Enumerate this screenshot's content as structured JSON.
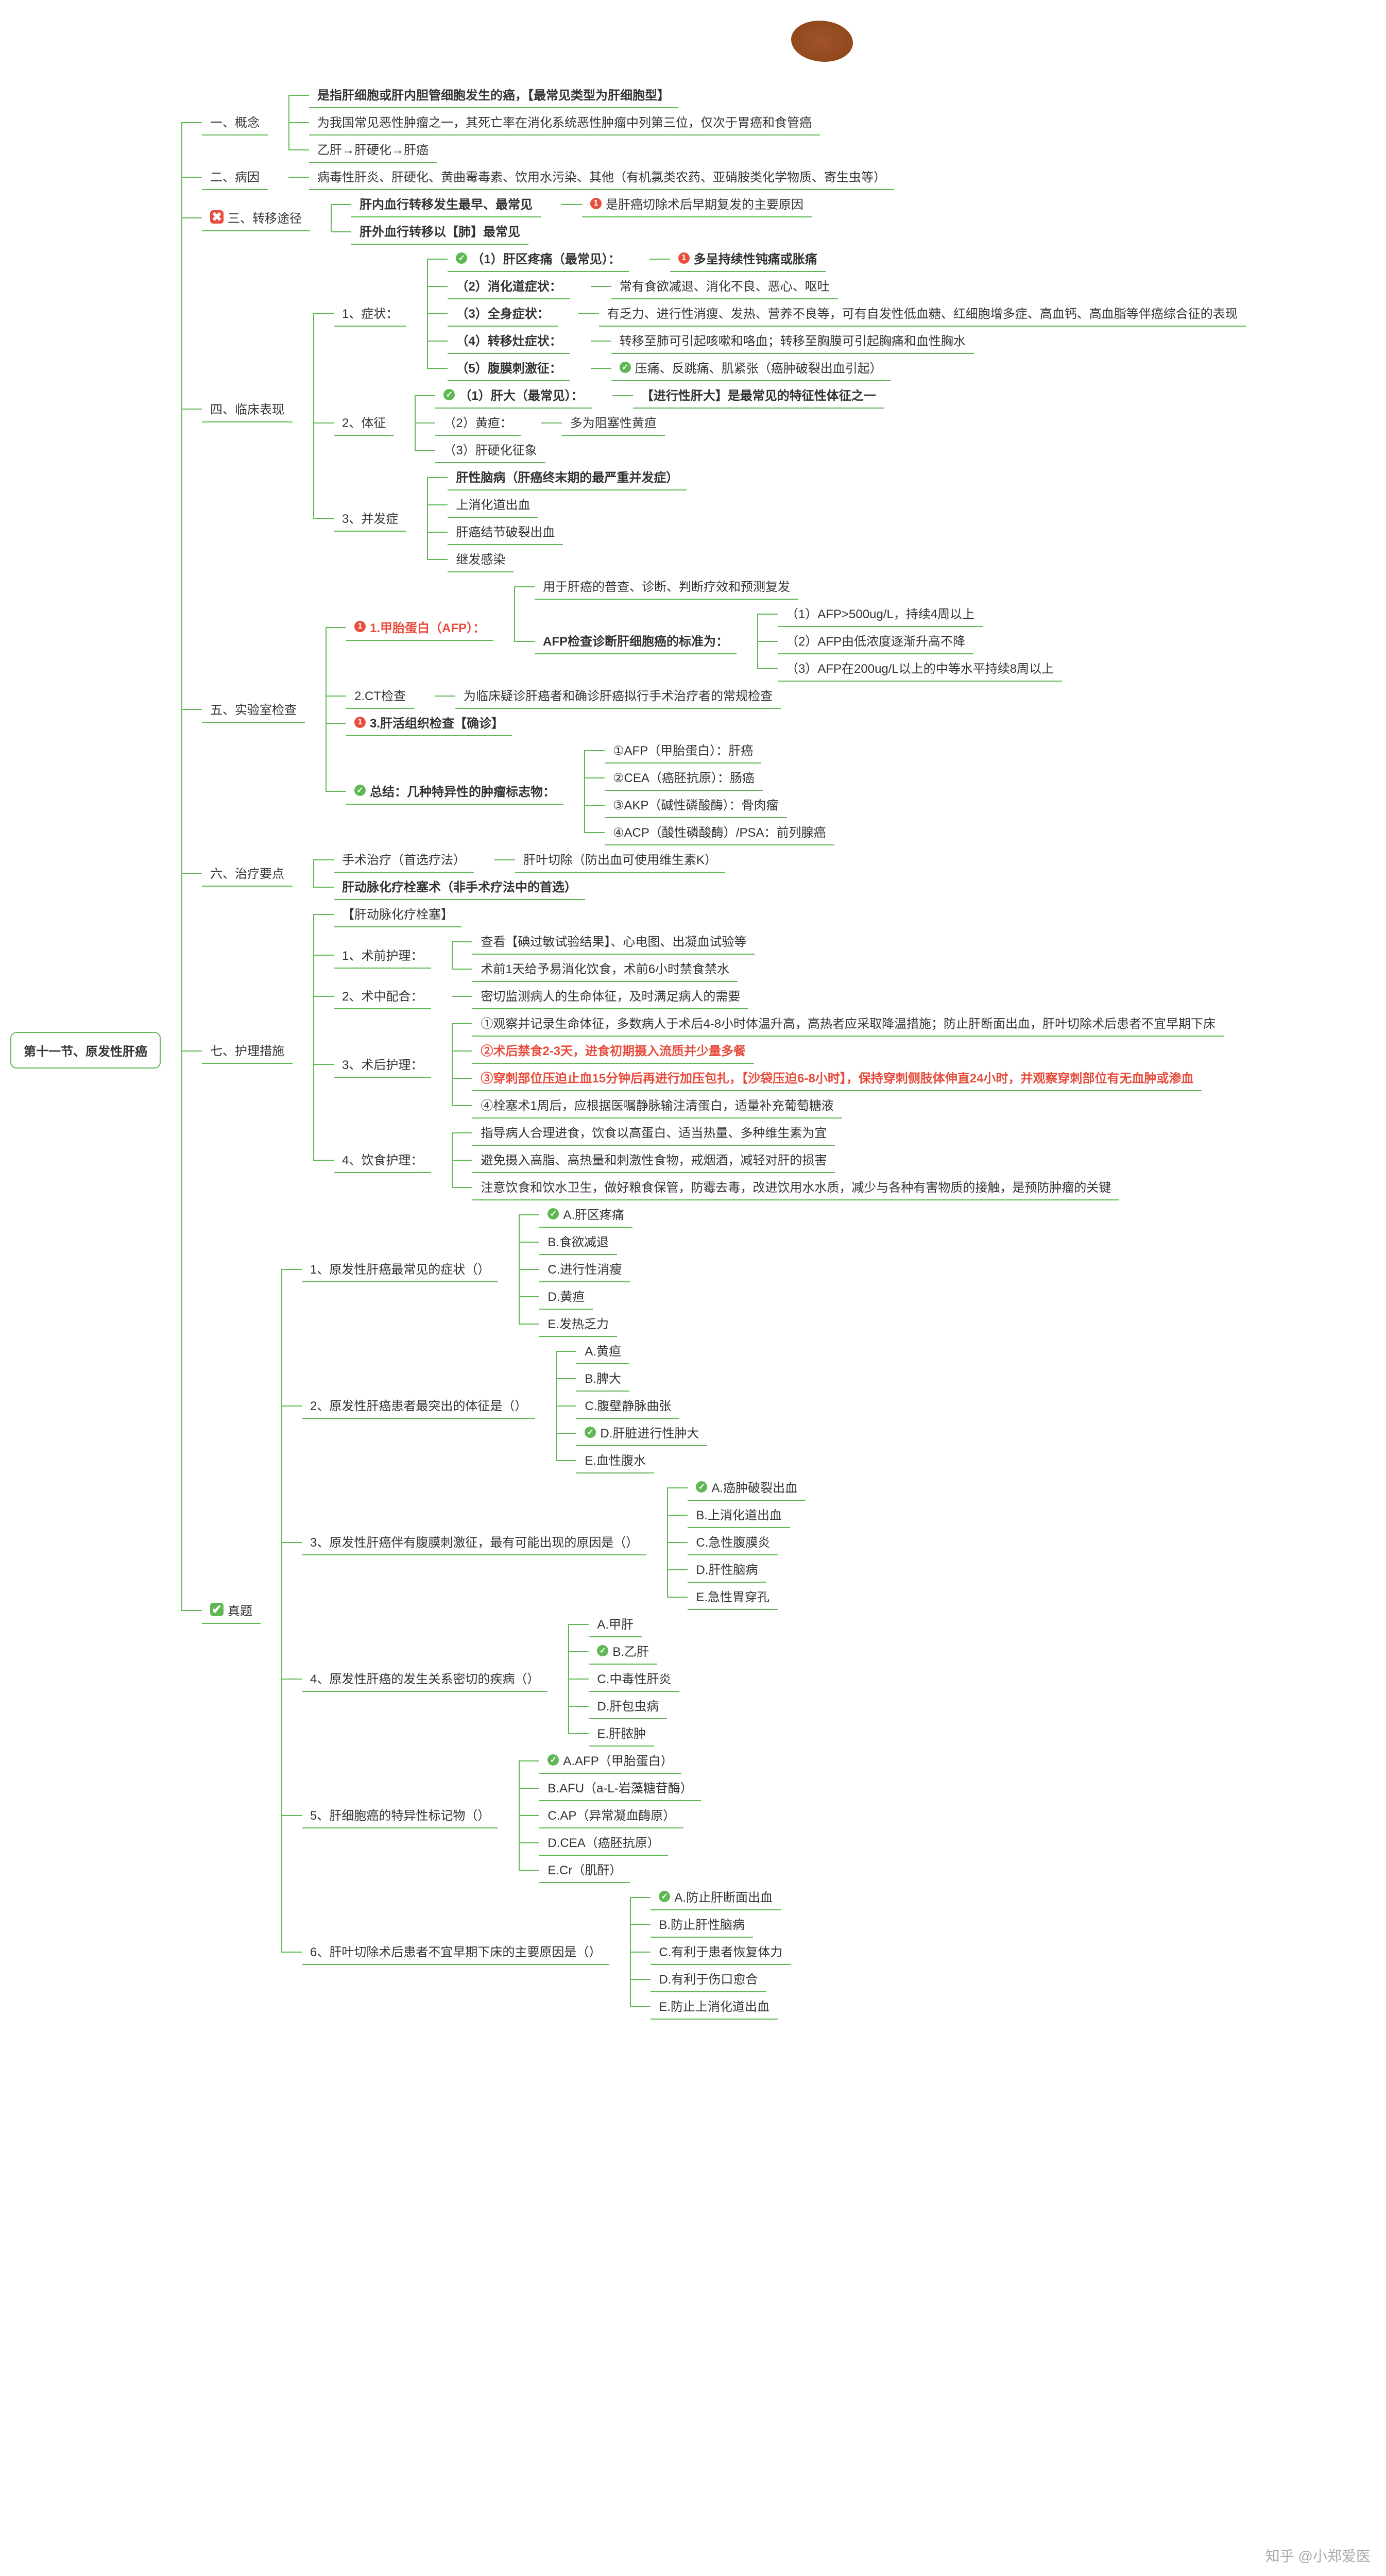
{
  "watermark": "知乎 @小郑爱医",
  "root": {
    "label": "第十一节、原发性肝癌",
    "children": [
      {
        "label": "一、概念",
        "children": [
          {
            "label": "是指肝细胞或肝内胆管细胞发生的癌，【最常见类型为肝细胞型】",
            "bold": true
          },
          {
            "label": "为我国常见恶性肿瘤之一，其死亡率在消化系统恶性肿瘤中列第三位，仅次于胃癌和食管癌"
          },
          {
            "label": "乙肝→肝硬化→肝癌"
          }
        ]
      },
      {
        "label": "二、病因",
        "children": [
          {
            "label": "病毒性肝炎、肝硬化、黄曲霉毒素、饮用水污染、其他（有机氯类农药、亚硝胺类化学物质、寄生虫等）"
          }
        ]
      },
      {
        "label": "三、转移途径",
        "icon": "red-box",
        "children": [
          {
            "label": "肝内血行转移发生最早、最常见",
            "bold": true,
            "children": [
              {
                "label": "是肝癌切除术后早期复发的主要原因",
                "dot": "red"
              }
            ]
          },
          {
            "label": "肝外血行转移以【肺】最常见",
            "bold": true
          }
        ]
      },
      {
        "label": "四、临床表现",
        "children": [
          {
            "label": "1、症状：",
            "children": [
              {
                "label": "（1）肝区疼痛（最常见）：",
                "bold": true,
                "dot": "green",
                "children": [
                  {
                    "label": "多呈持续性钝痛或胀痛",
                    "bold": true,
                    "dot": "red"
                  }
                ]
              },
              {
                "label": "（2）消化道症状：",
                "bold": true,
                "children": [
                  {
                    "label": "常有食欲减退、消化不良、恶心、呕吐"
                  }
                ]
              },
              {
                "label": "（3）全身症状：",
                "bold": true,
                "children": [
                  {
                    "label": "有乏力、进行性消瘦、发热、营养不良等，可有自发性低血糖、红细胞增多症、高血钙、高血脂等伴癌综合征的表现"
                  }
                ]
              },
              {
                "label": "（4）转移灶症状：",
                "bold": true,
                "children": [
                  {
                    "label": "转移至肺可引起咳嗽和咯血；转移至胸膜可引起胸痛和血性胸水"
                  }
                ]
              },
              {
                "label": "（5）腹膜刺激征：",
                "bold": true,
                "children": [
                  {
                    "label": "压痛、反跳痛、肌紧张（癌肿破裂出血引起）",
                    "dot": "green"
                  }
                ]
              }
            ]
          },
          {
            "label": "2、体征",
            "children": [
              {
                "label": "（1）肝大（最常见）：",
                "bold": true,
                "dot": "green",
                "children": [
                  {
                    "label": "【进行性肝大】是最常见的特征性体征之一",
                    "bold": true
                  }
                ]
              },
              {
                "label": "（2）黄疸：",
                "children": [
                  {
                    "label": "多为阻塞性黄疸"
                  }
                ]
              },
              {
                "label": "（3）肝硬化征象"
              }
            ]
          },
          {
            "label": "3、并发症",
            "children": [
              {
                "label": "肝性脑病（肝癌终末期的最严重并发症）",
                "bold": true
              },
              {
                "label": "上消化道出血"
              },
              {
                "label": "肝癌结节破裂出血"
              },
              {
                "label": "继发感染"
              }
            ]
          }
        ]
      },
      {
        "label": "五、实验室检查",
        "children": [
          {
            "label": "1.甲胎蛋白（AFP）：",
            "bold": true,
            "dot": "red",
            "color": "#e74c3c",
            "children": [
              {
                "label": "用于肝癌的普查、诊断、判断疗效和预测复发"
              },
              {
                "label": "AFP检查诊断肝细胞癌的标准为：",
                "bold": true,
                "children": [
                  {
                    "label": "（1）AFP>500ug/L，持续4周以上"
                  },
                  {
                    "label": "（2）AFP由低浓度逐渐升高不降"
                  },
                  {
                    "label": "（3）AFP在200ug/L以上的中等水平持续8周以上"
                  }
                ]
              }
            ]
          },
          {
            "label": "2.CT检查",
            "children": [
              {
                "label": "为临床疑诊肝癌者和确诊肝癌拟行手术治疗者的常规检查"
              }
            ]
          },
          {
            "label": "3.肝活组织检查【确诊】",
            "bold": true,
            "dot": "red"
          },
          {
            "label": "总结：几种特异性的肿瘤标志物：",
            "bold": true,
            "dot": "green",
            "children": [
              {
                "label": "①AFP（甲胎蛋白）：肝癌"
              },
              {
                "label": "②CEA（癌胚抗原）：肠癌"
              },
              {
                "label": "③AKP（碱性磷酸酶）：骨肉瘤"
              },
              {
                "label": "④ACP（酸性磷酸酶）/PSA：前列腺癌"
              }
            ]
          }
        ]
      },
      {
        "label": "六、治疗要点",
        "children": [
          {
            "label": "手术治疗（首选疗法）",
            "children": [
              {
                "label": "肝叶切除（防出血可使用维生素K）"
              }
            ]
          },
          {
            "label": "肝动脉化疗栓塞术（非手术疗法中的首选）",
            "bold": true
          }
        ]
      },
      {
        "label": "七、护理措施",
        "children": [
          {
            "label": "【肝动脉化疗栓塞】"
          },
          {
            "label": "1、术前护理：",
            "children": [
              {
                "label": "查看【碘过敏试验结果】、心电图、出凝血试验等"
              },
              {
                "label": "术前1天给予易消化饮食，术前6小时禁食禁水"
              }
            ]
          },
          {
            "label": "2、术中配合：",
            "children": [
              {
                "label": "密切监测病人的生命体征，及时满足病人的需要"
              }
            ]
          },
          {
            "label": "3、术后护理：",
            "children": [
              {
                "label": "①观察并记录生命体征，多数病人于术后4-8小时体温升高，高热者应采取降温措施；防止肝断面出血，肝叶切除术后患者不宜早期下床"
              },
              {
                "label": "②术后禁食2-3天，进食初期摄入流质并少量多餐",
                "bold": true,
                "color": "#e74c3c"
              },
              {
                "label": "③穿刺部位压迫止血15分钟后再进行加压包扎，【沙袋压迫6-8小时】，保持穿刺侧肢体伸直24小时，并观察穿刺部位有无血肿或渗血",
                "bold": true,
                "color": "#e74c3c"
              },
              {
                "label": "④栓塞术1周后，应根据医嘱静脉输注清蛋白，适量补充葡萄糖液"
              }
            ]
          },
          {
            "label": "4、饮食护理：",
            "children": [
              {
                "label": "指导病人合理进食，饮食以高蛋白、适当热量、多种维生素为宜"
              },
              {
                "label": "避免摄入高脂、高热量和刺激性食物，戒烟酒，减轻对肝的损害"
              },
              {
                "label": "注意饮食和饮水卫生，做好粮食保管，防霉去毒，改进饮用水水质，减少与各种有害物质的接触，是预防肿瘤的关键"
              }
            ]
          }
        ]
      },
      {
        "label": "真题",
        "icon": "green-box",
        "children": [
          {
            "label": "1、原发性肝癌最常见的症状（）",
            "children": [
              {
                "label": "A.肝区疼痛",
                "dot": "green"
              },
              {
                "label": "B.食欲减退"
              },
              {
                "label": "C.进行性消瘦"
              },
              {
                "label": "D.黄疸"
              },
              {
                "label": "E.发热乏力"
              }
            ]
          },
          {
            "label": "2、原发性肝癌患者最突出的体征是（）",
            "children": [
              {
                "label": "A.黄疸"
              },
              {
                "label": "B.脾大"
              },
              {
                "label": "C.腹壁静脉曲张"
              },
              {
                "label": "D.肝脏进行性肿大",
                "dot": "green"
              },
              {
                "label": "E.血性腹水"
              }
            ]
          },
          {
            "label": "3、原发性肝癌伴有腹膜刺激征，最有可能出现的原因是（）",
            "children": [
              {
                "label": "A.癌肿破裂出血",
                "dot": "green"
              },
              {
                "label": "B.上消化道出血"
              },
              {
                "label": "C.急性腹膜炎"
              },
              {
                "label": "D.肝性脑病"
              },
              {
                "label": "E.急性胃穿孔"
              }
            ]
          },
          {
            "label": "4、原发性肝癌的发生关系密切的疾病（）",
            "children": [
              {
                "label": "A.甲肝"
              },
              {
                "label": "B.乙肝",
                "dot": "green"
              },
              {
                "label": "C.中毒性肝炎"
              },
              {
                "label": "D.肝包虫病"
              },
              {
                "label": "E.肝脓肿"
              }
            ]
          },
          {
            "label": "5、肝细胞癌的特异性标记物（）",
            "children": [
              {
                "label": "A.AFP（甲胎蛋白）",
                "dot": "green"
              },
              {
                "label": "B.AFU（a-L-岩藻糖苷酶）"
              },
              {
                "label": "C.AP（异常凝血酶原）"
              },
              {
                "label": "D.CEA（癌胚抗原）"
              },
              {
                "label": "E.Cr（肌酐）"
              }
            ]
          },
          {
            "label": "6、肝叶切除术后患者不宜早期下床的主要原因是（）",
            "children": [
              {
                "label": "A.防止肝断面出血",
                "dot": "green"
              },
              {
                "label": "B.防止肝性脑病"
              },
              {
                "label": "C.有利于患者恢复体力"
              },
              {
                "label": "D.有利于伤口愈合"
              },
              {
                "label": "E.防止上消化道出血"
              }
            ]
          }
        ]
      }
    ]
  }
}
